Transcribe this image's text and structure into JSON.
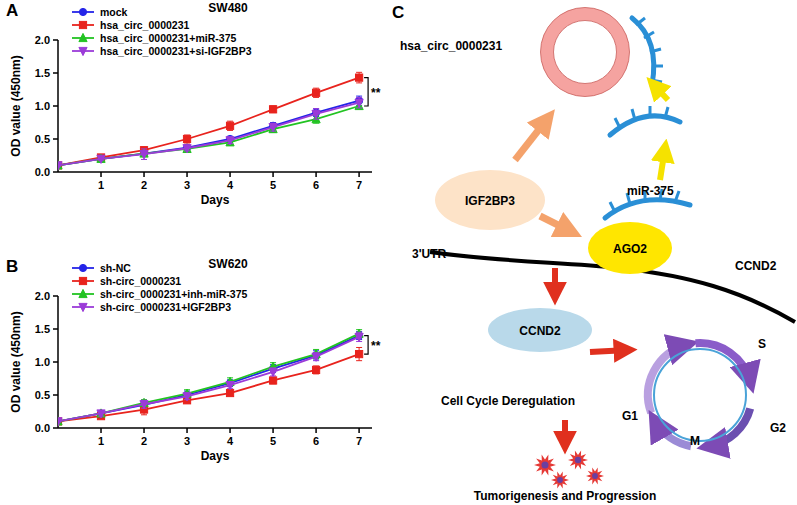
{
  "chart_data": [
    {
      "type": "line",
      "panel": "A",
      "title": "SW480",
      "x_label": "Days",
      "y_label": "OD value (450nm)",
      "x": [
        0,
        1,
        2,
        3,
        4,
        5,
        6,
        7
      ],
      "xlim": [
        0,
        7.3
      ],
      "xticks": [
        1,
        2,
        3,
        4,
        5,
        6,
        7
      ],
      "ylim": [
        0,
        2
      ],
      "yticks": [
        {
          "value": 0,
          "label": "0.0"
        },
        {
          "value": 0.5,
          "label": "0.5"
        },
        {
          "value": 1,
          "label": "1.0"
        },
        {
          "value": 1.5,
          "label": "1.5"
        },
        {
          "value": 2,
          "label": "2.0"
        }
      ],
      "legend": "upper left",
      "series": [
        {
          "name": "mock",
          "color": "#2424e8",
          "marker": "circle",
          "values": [
            0.1,
            0.2,
            0.28,
            0.37,
            0.5,
            0.7,
            0.9,
            1.08
          ],
          "errors": [
            0.01,
            0.02,
            0.03,
            0.03,
            0.04,
            0.05,
            0.06,
            0.07
          ]
        },
        {
          "name": "hsa_circ_0000231",
          "color": "#e8231d",
          "marker": "square",
          "values": [
            0.1,
            0.22,
            0.33,
            0.5,
            0.7,
            0.95,
            1.2,
            1.43
          ],
          "errors": [
            0.01,
            0.03,
            0.05,
            0.06,
            0.07,
            0.05,
            0.07,
            0.08
          ]
        },
        {
          "name": "hsa_circ_0000231+miR-375",
          "color": "#22c322",
          "marker": "triangle-up",
          "values": [
            0.1,
            0.2,
            0.28,
            0.35,
            0.45,
            0.65,
            0.8,
            1.0
          ],
          "errors": [
            0.01,
            0.02,
            0.03,
            0.04,
            0.04,
            0.05,
            0.06,
            0.05
          ]
        },
        {
          "name": "hsa_circ_0000231+si-IGF2BP3",
          "color": "#9b3bd8",
          "marker": "triangle-down",
          "values": [
            0.1,
            0.2,
            0.27,
            0.36,
            0.48,
            0.68,
            0.88,
            1.05
          ],
          "errors": [
            0.01,
            0.02,
            0.08,
            0.04,
            0.05,
            0.06,
            0.08,
            0.08
          ]
        }
      ],
      "annotations": [
        {
          "text": "**",
          "y_range": [
            1.0,
            1.43
          ]
        }
      ]
    },
    {
      "type": "line",
      "panel": "B",
      "title": "SW620",
      "x_label": "Days",
      "y_label": "OD value (450nm)",
      "x": [
        0,
        1,
        2,
        3,
        4,
        5,
        6,
        7
      ],
      "xlim": [
        0,
        7.3
      ],
      "xticks": [
        1,
        2,
        3,
        4,
        5,
        6,
        7
      ],
      "ylim": [
        0,
        2
      ],
      "yticks": [
        {
          "value": 0,
          "label": "0.0"
        },
        {
          "value": 0.5,
          "label": "0.5"
        },
        {
          "value": 1,
          "label": "1.0"
        },
        {
          "value": 1.5,
          "label": "1.5"
        },
        {
          "value": 2,
          "label": "2.0"
        }
      ],
      "legend": "upper left",
      "series": [
        {
          "name": "sh-NC",
          "color": "#2424e8",
          "marker": "circle",
          "values": [
            0.1,
            0.22,
            0.35,
            0.5,
            0.68,
            0.9,
            1.1,
            1.4
          ],
          "errors": [
            0.01,
            0.03,
            0.05,
            0.06,
            0.05,
            0.06,
            0.07,
            0.06
          ]
        },
        {
          "name": "sh-circ_0000231",
          "color": "#e8231d",
          "marker": "square",
          "values": [
            0.1,
            0.18,
            0.28,
            0.42,
            0.53,
            0.72,
            0.88,
            1.12
          ],
          "errors": [
            0.01,
            0.03,
            0.08,
            0.04,
            0.04,
            0.05,
            0.06,
            0.1
          ]
        },
        {
          "name": "sh-circ_0000231+inh-miR-375",
          "color": "#22c322",
          "marker": "triangle-up",
          "values": [
            0.1,
            0.22,
            0.38,
            0.52,
            0.7,
            0.93,
            1.12,
            1.43
          ],
          "errors": [
            0.01,
            0.03,
            0.05,
            0.06,
            0.06,
            0.06,
            0.07,
            0.06
          ]
        },
        {
          "name": "sh-circ_0000231+IGF2BP3",
          "color": "#9b3bd8",
          "marker": "triangle-down",
          "values": [
            0.1,
            0.22,
            0.36,
            0.48,
            0.65,
            0.85,
            1.08,
            1.38
          ],
          "errors": [
            0.01,
            0.04,
            0.06,
            0.05,
            0.05,
            0.06,
            0.06,
            0.07
          ]
        }
      ],
      "annotations": [
        {
          "text": "**",
          "y_range": [
            1.12,
            1.4
          ]
        }
      ]
    }
  ],
  "diagram": {
    "label": "C",
    "circ": "hsa_circ_0000231",
    "protein": "IGF2BP3",
    "mirna": "miR-375",
    "ago": "AGO2",
    "utr": "3'UTR",
    "mrna": "CCND2",
    "product": "CCND2",
    "cycle_title": "Cell Cycle Deregulation",
    "phases": [
      "G1",
      "S",
      "G2",
      "M"
    ],
    "outcome": "Tumorigenesis and Progression"
  }
}
